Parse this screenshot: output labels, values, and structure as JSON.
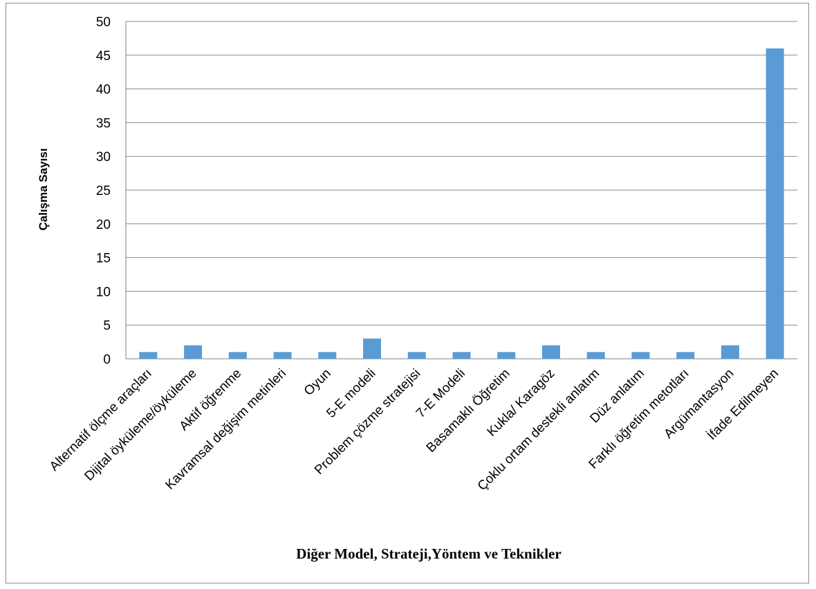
{
  "chart_data": {
    "type": "bar",
    "title": "",
    "xlabel": "Diğer Model, Strateji,Yöntem ve Teknikler",
    "ylabel": "Çalışma Sayısı",
    "ylim": [
      0,
      50
    ],
    "yticks": [
      0,
      5,
      10,
      15,
      20,
      25,
      30,
      35,
      40,
      45,
      50
    ],
    "grid": true,
    "legend": "none",
    "bar_color": "#5b9bd5",
    "categories": [
      "Alternatif ölçme araçları",
      "Dijital öyküleme/öyküleme",
      "Aktif öğrenme",
      "Kavramsal değişim metinleri",
      "Oyun",
      "5-E modeli",
      "Problem çözme stratejisi",
      "7-E Modeli",
      "Basamaklı Öğretim",
      "Kukla/ Karagöz",
      "Çoklu ortam destekli anlatım",
      "Düz anlatım",
      "Farklı öğretim metotları",
      "Argümantasyon",
      "İfade Edilmeyen"
    ],
    "values": [
      1,
      2,
      1,
      1,
      1,
      3,
      1,
      1,
      1,
      2,
      1,
      1,
      1,
      2,
      46
    ]
  }
}
